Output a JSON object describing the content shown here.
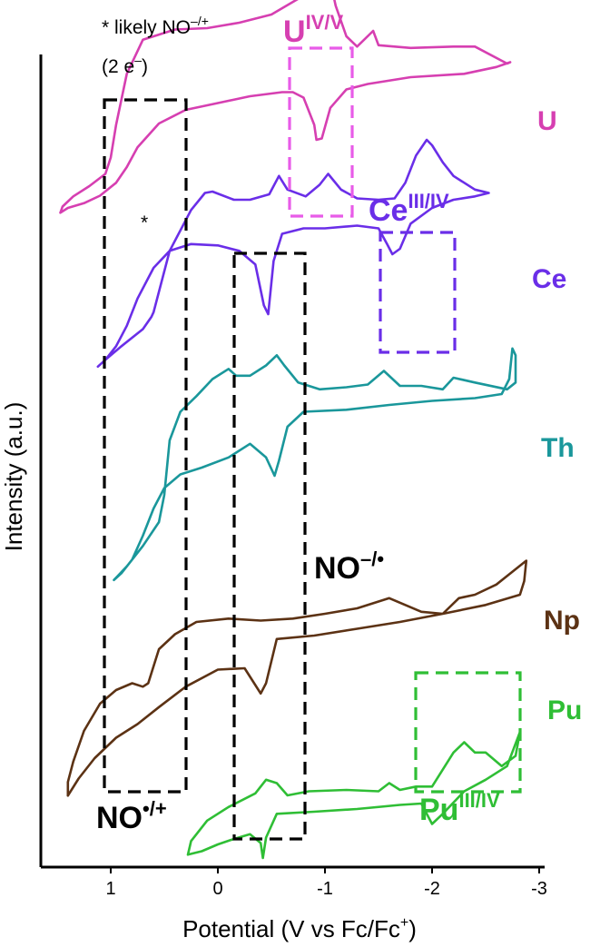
{
  "chart_data": {
    "type": "line",
    "xlabel_main": "Potential (V vs Fc/Fc",
    "xlabel_sup": "+",
    "xlabel_end": ")",
    "ylabel": "Intensity (a.u.)",
    "xlim": [
      1.6,
      -3.0
    ],
    "x_reversed": true,
    "x_ticks": [
      1,
      0,
      -1,
      -2,
      -3
    ],
    "x_tick_labels": [
      "1",
      "0",
      "-1",
      "-2",
      "-3"
    ],
    "y_ticks": [],
    "grid": false,
    "series": [
      {
        "name": "U",
        "color": "#d63fb1",
        "forward": [
          [
            1.47,
            -0.99
          ],
          [
            1.4,
            -0.92
          ],
          [
            1.25,
            -0.85
          ],
          [
            1.1,
            -0.74
          ],
          [
            0.95,
            -0.55
          ],
          [
            0.85,
            -0.32
          ],
          [
            0.75,
            -0.03
          ],
          [
            0.55,
            0.32
          ],
          [
            0.3,
            0.52
          ],
          [
            0.0,
            0.62
          ],
          [
            -0.3,
            0.72
          ],
          [
            -0.6,
            0.78
          ],
          [
            -0.7,
            0.78
          ],
          [
            -0.8,
            0.7
          ],
          [
            -0.9,
            0.3
          ],
          [
            -0.92,
            0.08
          ],
          [
            -0.97,
            0.1
          ],
          [
            -1.05,
            0.55
          ],
          [
            -1.2,
            0.82
          ],
          [
            -1.4,
            0.9
          ],
          [
            -1.8,
            1.0
          ],
          [
            -2.3,
            1.05
          ],
          [
            -2.6,
            1.15
          ],
          [
            -2.73,
            1.22
          ]
        ],
        "reverse": [
          [
            -2.73,
            1.22
          ],
          [
            -2.7,
            1.2
          ],
          [
            -2.4,
            1.45
          ],
          [
            -2.2,
            1.45
          ],
          [
            -1.8,
            1.43
          ],
          [
            -1.5,
            1.47
          ],
          [
            -1.45,
            1.68
          ],
          [
            -1.3,
            1.45
          ],
          [
            -1.2,
            1.6
          ],
          [
            -1.1,
            2.05
          ],
          [
            -1.03,
            2.55
          ],
          [
            -0.97,
            2.92
          ],
          [
            -0.88,
            2.62
          ],
          [
            -0.75,
            2.15
          ],
          [
            -0.5,
            1.92
          ],
          [
            -0.2,
            1.8
          ],
          [
            0.1,
            1.72
          ],
          [
            0.4,
            1.7
          ],
          [
            0.7,
            1.55
          ],
          [
            0.85,
            1.05
          ],
          [
            0.95,
            0.3
          ],
          [
            1.0,
            -0.18
          ],
          [
            1.05,
            -0.42
          ],
          [
            1.2,
            -0.6
          ],
          [
            1.35,
            -0.75
          ],
          [
            1.45,
            -0.9
          ],
          [
            1.47,
            -0.99
          ]
        ]
      },
      {
        "name": "Ce",
        "color": "#6a2ee8",
        "forward": [
          [
            1.12,
            -0.45
          ],
          [
            1.05,
            -0.35
          ],
          [
            0.95,
            -0.15
          ],
          [
            0.85,
            0.15
          ],
          [
            0.75,
            0.55
          ],
          [
            0.6,
            1.0
          ],
          [
            0.45,
            1.25
          ],
          [
            0.25,
            1.35
          ],
          [
            0.0,
            1.33
          ],
          [
            -0.2,
            1.25
          ],
          [
            -0.35,
            1.05
          ],
          [
            -0.43,
            0.45
          ],
          [
            -0.47,
            0.32
          ],
          [
            -0.52,
            1.1
          ],
          [
            -0.6,
            1.5
          ],
          [
            -0.8,
            1.58
          ],
          [
            -1.0,
            1.58
          ],
          [
            -1.3,
            1.62
          ],
          [
            -1.5,
            1.58
          ],
          [
            -1.58,
            1.35
          ],
          [
            -1.63,
            1.2
          ],
          [
            -1.7,
            1.28
          ],
          [
            -1.8,
            1.65
          ],
          [
            -2.0,
            1.88
          ],
          [
            -2.2,
            2.0
          ],
          [
            -2.4,
            2.05
          ],
          [
            -2.53,
            2.1
          ]
        ],
        "reverse": [
          [
            -2.53,
            2.1
          ],
          [
            -2.4,
            2.15
          ],
          [
            -2.2,
            2.35
          ],
          [
            -2.1,
            2.55
          ],
          [
            -2.0,
            2.8
          ],
          [
            -1.95,
            2.88
          ],
          [
            -1.85,
            2.65
          ],
          [
            -1.75,
            2.25
          ],
          [
            -1.65,
            2.02
          ],
          [
            -1.5,
            2.0
          ],
          [
            -1.3,
            2.02
          ],
          [
            -1.15,
            2.15
          ],
          [
            -1.03,
            2.38
          ],
          [
            -0.95,
            2.22
          ],
          [
            -0.82,
            2.05
          ],
          [
            -0.65,
            2.15
          ],
          [
            -0.57,
            2.35
          ],
          [
            -0.48,
            2.08
          ],
          [
            -0.3,
            2.0
          ],
          [
            -0.15,
            2.0
          ],
          [
            0.05,
            2.12
          ],
          [
            0.12,
            2.1
          ],
          [
            0.25,
            1.85
          ],
          [
            0.45,
            1.25
          ],
          [
            0.6,
            0.35
          ],
          [
            0.62,
            0.28
          ],
          [
            0.7,
            0.1
          ],
          [
            0.9,
            -0.15
          ],
          [
            1.05,
            -0.35
          ],
          [
            1.12,
            -0.45
          ]
        ]
      },
      {
        "name": "Th",
        "color": "#1a979b",
        "forward": [
          [
            0.97,
            -1.25
          ],
          [
            0.9,
            -1.15
          ],
          [
            0.8,
            -0.95
          ],
          [
            0.7,
            -0.6
          ],
          [
            0.6,
            -0.2
          ],
          [
            0.5,
            0.1
          ],
          [
            0.35,
            0.3
          ],
          [
            0.15,
            0.4
          ],
          [
            -0.1,
            0.55
          ],
          [
            -0.3,
            0.75
          ],
          [
            -0.45,
            0.55
          ],
          [
            -0.53,
            0.28
          ],
          [
            -0.57,
            0.5
          ],
          [
            -0.65,
            1.0
          ],
          [
            -0.8,
            1.22
          ],
          [
            -1.2,
            1.25
          ],
          [
            -1.6,
            1.32
          ],
          [
            -2.0,
            1.38
          ],
          [
            -2.4,
            1.42
          ],
          [
            -2.65,
            1.48
          ],
          [
            -2.72,
            1.7
          ],
          [
            -2.75,
            2.15
          ]
        ],
        "reverse": [
          [
            -2.75,
            2.15
          ],
          [
            -2.78,
            2.05
          ],
          [
            -2.78,
            1.65
          ],
          [
            -2.7,
            1.55
          ],
          [
            -2.4,
            1.65
          ],
          [
            -2.2,
            1.72
          ],
          [
            -2.1,
            1.55
          ],
          [
            -1.9,
            1.6
          ],
          [
            -1.7,
            1.6
          ],
          [
            -1.55,
            1.82
          ],
          [
            -1.4,
            1.62
          ],
          [
            -1.2,
            1.58
          ],
          [
            -0.95,
            1.55
          ],
          [
            -0.75,
            1.65
          ],
          [
            -0.62,
            1.9
          ],
          [
            -0.55,
            2.05
          ],
          [
            -0.45,
            1.9
          ],
          [
            -0.3,
            1.75
          ],
          [
            -0.17,
            1.75
          ],
          [
            -0.1,
            1.85
          ],
          [
            0.05,
            1.7
          ],
          [
            0.2,
            1.45
          ],
          [
            0.35,
            1.22
          ],
          [
            0.45,
            0.8
          ],
          [
            0.5,
            0.0
          ],
          [
            0.55,
            -0.4
          ],
          [
            0.7,
            -0.75
          ],
          [
            0.85,
            -1.05
          ],
          [
            0.97,
            -1.25
          ]
        ]
      },
      {
        "name": "Np",
        "color": "#5c3214",
        "forward": [
          [
            1.4,
            -1.75
          ],
          [
            1.3,
            -1.5
          ],
          [
            1.15,
            -1.2
          ],
          [
            0.95,
            -0.9
          ],
          [
            0.75,
            -0.7
          ],
          [
            0.55,
            -0.45
          ],
          [
            0.3,
            -0.15
          ],
          [
            0.0,
            0.1
          ],
          [
            -0.25,
            0.12
          ],
          [
            -0.4,
            -0.25
          ],
          [
            -0.45,
            -0.1
          ],
          [
            -0.55,
            0.55
          ],
          [
            -0.9,
            0.6
          ],
          [
            -1.3,
            0.7
          ],
          [
            -1.7,
            0.8
          ],
          [
            -2.1,
            0.92
          ],
          [
            -2.5,
            1.05
          ],
          [
            -2.82,
            1.2
          ],
          [
            -2.86,
            1.4
          ],
          [
            -2.88,
            1.7
          ]
        ],
        "reverse": [
          [
            -2.88,
            1.7
          ],
          [
            -2.8,
            1.6
          ],
          [
            -2.6,
            1.35
          ],
          [
            -2.4,
            1.2
          ],
          [
            -2.25,
            1.15
          ],
          [
            -2.1,
            0.92
          ],
          [
            -1.9,
            0.95
          ],
          [
            -1.6,
            1.15
          ],
          [
            -1.3,
            1.0
          ],
          [
            -1.0,
            0.92
          ],
          [
            -0.7,
            0.85
          ],
          [
            -0.4,
            0.82
          ],
          [
            -0.1,
            0.85
          ],
          [
            0.2,
            0.8
          ],
          [
            0.4,
            0.62
          ],
          [
            0.55,
            0.4
          ],
          [
            0.65,
            -0.1
          ],
          [
            0.7,
            -0.15
          ],
          [
            0.8,
            -0.1
          ],
          [
            0.95,
            -0.2
          ],
          [
            1.1,
            -0.4
          ],
          [
            1.25,
            -0.8
          ],
          [
            1.35,
            -1.25
          ],
          [
            1.4,
            -1.55
          ],
          [
            1.4,
            -1.75
          ]
        ]
      },
      {
        "name": "Pu",
        "color": "#2fbe35",
        "forward": [
          [
            0.28,
            -1.55
          ],
          [
            0.15,
            -1.5
          ],
          [
            0.0,
            -1.4
          ],
          [
            -0.15,
            -1.32
          ],
          [
            -0.3,
            -1.25
          ],
          [
            -0.4,
            -1.38
          ],
          [
            -0.42,
            -1.6
          ],
          [
            -0.45,
            -1.3
          ],
          [
            -0.55,
            -0.95
          ],
          [
            -0.9,
            -0.92
          ],
          [
            -1.3,
            -0.88
          ],
          [
            -1.7,
            -0.82
          ],
          [
            -1.9,
            -0.8
          ],
          [
            -2.0,
            -1.1
          ],
          [
            -2.1,
            -0.95
          ],
          [
            -2.3,
            -0.62
          ],
          [
            -2.5,
            -0.45
          ],
          [
            -2.7,
            -0.25
          ],
          [
            -2.82,
            0.25
          ]
        ],
        "reverse": [
          [
            -2.82,
            0.25
          ],
          [
            -2.78,
            -0.1
          ],
          [
            -2.65,
            -0.25
          ],
          [
            -2.5,
            -0.05
          ],
          [
            -2.4,
            -0.05
          ],
          [
            -2.3,
            0.1
          ],
          [
            -2.2,
            -0.05
          ],
          [
            -2.0,
            -0.55
          ],
          [
            -1.85,
            -0.55
          ],
          [
            -1.7,
            -0.6
          ],
          [
            -1.6,
            -0.5
          ],
          [
            -1.5,
            -0.62
          ],
          [
            -1.2,
            -0.6
          ],
          [
            -0.85,
            -0.62
          ],
          [
            -0.65,
            -0.68
          ],
          [
            -0.55,
            -0.5
          ],
          [
            -0.45,
            -0.45
          ],
          [
            -0.35,
            -0.65
          ],
          [
            -0.1,
            -0.85
          ],
          [
            0.1,
            -1.05
          ],
          [
            0.25,
            -1.35
          ],
          [
            0.28,
            -1.55
          ]
        ]
      }
    ]
  },
  "labels": {
    "note_line1": "* likely NO",
    "note_line1_sup": "–/+",
    "note_line2": "(2 e",
    "note_line2_sup": "–",
    "note_line2_end": ")",
    "peak_mark": "*",
    "series_u": "U",
    "series_ce": "Ce",
    "series_th": "Th",
    "series_np": "Np",
    "series_pu": "Pu",
    "couple_u_main": "U",
    "couple_u_sup": "IV/V",
    "couple_ce_main": "Ce",
    "couple_ce_sup": "III/IV",
    "couple_pu_main": "Pu",
    "couple_pu_sup": "III/IV",
    "no_minus_main": "NO",
    "no_minus_sup": "–/•",
    "no_plus_main": "NO",
    "no_plus_sup": "•/+"
  },
  "colors": {
    "u_box": "#e85ce8",
    "ce_box": "#6a2ee8",
    "pu_box": "#2fbe35",
    "no_box": "#000000"
  }
}
